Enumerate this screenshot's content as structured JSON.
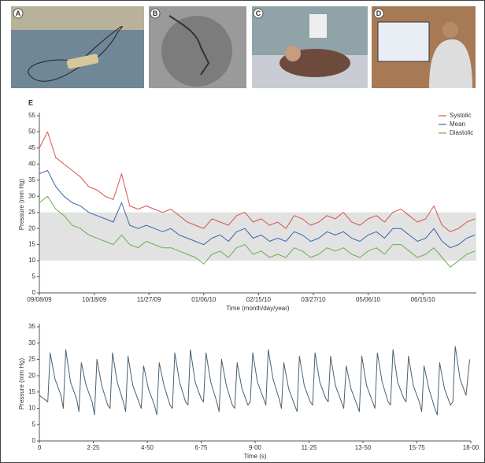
{
  "panel_labels": [
    "A",
    "B",
    "C",
    "D"
  ],
  "chart_data": [
    {
      "type": "line",
      "panel_label": "E",
      "x_label": "Time (month/day/year)",
      "y_label": "Pressure (mm Hg)",
      "x": [
        "09/08/09",
        "09/14/09",
        "09/20/09",
        "09/26/09",
        "10/02/09",
        "10/08/09",
        "10/14/09",
        "10/20/09",
        "10/26/09",
        "11/01/09",
        "11/07/09",
        "11/13/09",
        "11/19/09",
        "11/25/09",
        "12/01/09",
        "12/07/09",
        "12/13/09",
        "12/19/09",
        "12/25/09",
        "12/31/09",
        "01/06/10",
        "01/12/10",
        "01/18/10",
        "01/24/10",
        "01/30/10",
        "02/05/10",
        "02/11/10",
        "02/17/10",
        "02/23/10",
        "03/01/10",
        "03/07/10",
        "03/13/10",
        "03/19/10",
        "03/25/10",
        "03/31/10",
        "04/06/10",
        "04/12/10",
        "04/18/10",
        "04/24/10",
        "04/30/10",
        "05/06/10",
        "05/12/10",
        "05/18/10",
        "05/24/10",
        "05/30/10",
        "06/05/10",
        "06/11/10",
        "06/17/10",
        "06/23/10",
        "06/29/10",
        "07/05/10",
        "07/11/10",
        "07/17/10",
        "07/23/10"
      ],
      "series": [
        {
          "name": "Systolic",
          "color": "#d9534f",
          "values": [
            45,
            50,
            42,
            40,
            38,
            36,
            33,
            32,
            30,
            29,
            37,
            27,
            26,
            27,
            26,
            25,
            26,
            24,
            22,
            21,
            20,
            23,
            22,
            21,
            24,
            25,
            22,
            23,
            21,
            22,
            20,
            24,
            23,
            21,
            22,
            24,
            23,
            25,
            22,
            21,
            23,
            24,
            22,
            25,
            26,
            24,
            22,
            23,
            27,
            21,
            19,
            20,
            22,
            23
          ]
        },
        {
          "name": "Mean",
          "color": "#3a66b0",
          "values": [
            37,
            38,
            33,
            30,
            28,
            27,
            25,
            24,
            23,
            22,
            28,
            21,
            20,
            21,
            20,
            19,
            20,
            18,
            17,
            16,
            15,
            17,
            18,
            16,
            19,
            20,
            17,
            18,
            16,
            17,
            16,
            19,
            18,
            16,
            17,
            19,
            18,
            19,
            17,
            16,
            18,
            19,
            17,
            20,
            20,
            18,
            16,
            17,
            20,
            16,
            14,
            15,
            17,
            18
          ]
        },
        {
          "name": "Diastolic",
          "color": "#6ab04c",
          "values": [
            28,
            30,
            26,
            24,
            21,
            20,
            18,
            17,
            16,
            15,
            18,
            15,
            14,
            16,
            15,
            14,
            14,
            13,
            12,
            11,
            9,
            12,
            13,
            11,
            14,
            15,
            12,
            13,
            11,
            12,
            11,
            14,
            13,
            11,
            12,
            14,
            13,
            14,
            12,
            11,
            13,
            14,
            12,
            15,
            15,
            13,
            11,
            12,
            14,
            11,
            8,
            10,
            12,
            13
          ]
        }
      ],
      "xlim": [
        "09/08/09",
        "07/24/10"
      ],
      "xticks": [
        "09/08/09",
        "10/18/09",
        "11/27/09",
        "01/06/10",
        "02/15/10",
        "03/27/10",
        "05/06/10",
        "06/15/10"
      ],
      "ylim": [
        0,
        55
      ],
      "yticks": [
        0,
        5,
        10,
        15,
        20,
        25,
        30,
        35,
        40,
        45,
        50,
        55
      ],
      "band": [
        10,
        25
      ],
      "band_color": "#e2e2e2",
      "legend": "top-right"
    },
    {
      "type": "line",
      "x_label": "Time (s)",
      "y_label": "Pressure (mm Hg)",
      "x": [
        0,
        0.35,
        0.45,
        0.65,
        0.9,
        1.0,
        1.1,
        1.3,
        1.55,
        1.65,
        1.75,
        1.95,
        2.2,
        2.3,
        2.4,
        2.6,
        2.85,
        2.95,
        3.05,
        3.25,
        3.5,
        3.6,
        3.7,
        3.9,
        4.15,
        4.25,
        4.35,
        4.55,
        4.8,
        4.9,
        5.0,
        5.2,
        5.45,
        5.55,
        5.65,
        5.85,
        6.1,
        6.2,
        6.3,
        6.5,
        6.75,
        6.85,
        6.95,
        7.15,
        7.4,
        7.5,
        7.6,
        7.8,
        8.05,
        8.15,
        8.25,
        8.45,
        8.7,
        8.8,
        8.9,
        9.1,
        9.35,
        9.45,
        9.55,
        9.75,
        10.0,
        10.1,
        10.2,
        10.4,
        10.65,
        10.75,
        10.85,
        11.05,
        11.3,
        11.4,
        11.5,
        11.7,
        11.95,
        12.05,
        12.15,
        12.35,
        12.6,
        12.7,
        12.8,
        13.0,
        13.25,
        13.35,
        13.45,
        13.65,
        13.9,
        14.0,
        14.1,
        14.3,
        14.55,
        14.65,
        14.75,
        14.95,
        15.2,
        15.3,
        15.4,
        15.6,
        15.85,
        15.95,
        16.05,
        16.25,
        16.5,
        16.6,
        16.7,
        16.9,
        17.15,
        17.25,
        17.35,
        17.55,
        17.8,
        17.95
      ],
      "series": [
        {
          "color": "#4a6070",
          "values": [
            14,
            12,
            27,
            19,
            14,
            10,
            28,
            18,
            13,
            9,
            24,
            17,
            12,
            8,
            25,
            17,
            11,
            10,
            27,
            18,
            12,
            9,
            26,
            17,
            12,
            10,
            23,
            16,
            11,
            8,
            24,
            17,
            11,
            10,
            27,
            18,
            12,
            11,
            28,
            18,
            13,
            12,
            27,
            18,
            12,
            9,
            25,
            17,
            11,
            10,
            24,
            16,
            11,
            12,
            27,
            18,
            13,
            11,
            28,
            19,
            13,
            10,
            24,
            16,
            11,
            9,
            26,
            17,
            12,
            11,
            27,
            18,
            13,
            12,
            26,
            17,
            12,
            10,
            23,
            16,
            11,
            9,
            26,
            17,
            12,
            10,
            27,
            18,
            12,
            11,
            28,
            18,
            13,
            12,
            26,
            17,
            12,
            9,
            23,
            16,
            10,
            8,
            24,
            16,
            11,
            12,
            29,
            19,
            14,
            25
          ]
        }
      ],
      "xlim": [
        0,
        18
      ],
      "xticks": [
        0,
        {
          "value": 2.25,
          "label": "2·25"
        },
        {
          "value": 4.5,
          "label": "4·50"
        },
        {
          "value": 6.75,
          "label": "6·75"
        },
        {
          "value": 9,
          "label": "9·00"
        },
        {
          "value": 11.25,
          "label": "11·25"
        },
        {
          "value": 13.5,
          "label": "13·50"
        },
        {
          "value": 15.75,
          "label": "15·75"
        },
        {
          "value": 18,
          "label": "18·00"
        }
      ],
      "ylim": [
        0,
        35
      ],
      "yticks": [
        0,
        5,
        10,
        15,
        20,
        25,
        30,
        35
      ]
    }
  ]
}
